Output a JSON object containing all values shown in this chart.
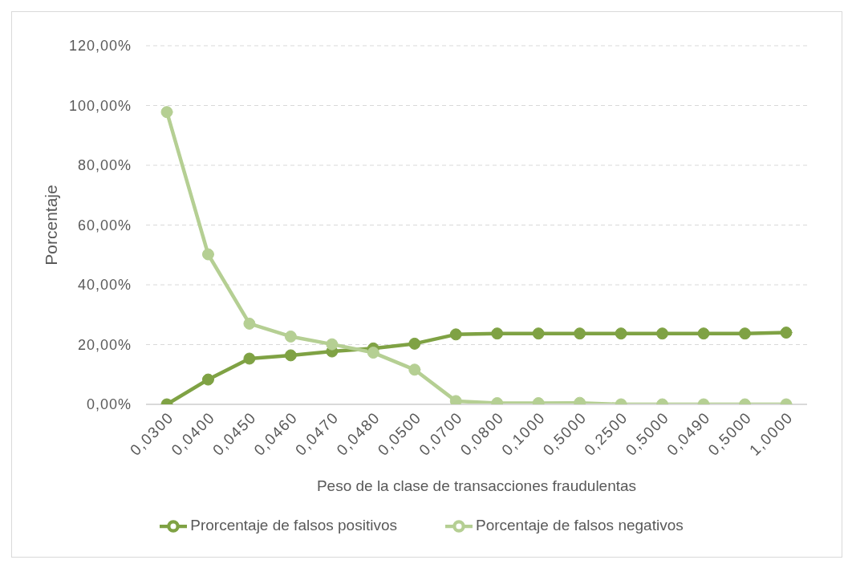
{
  "chart_data": {
    "type": "line",
    "xlabel": "Peso de la clase de transacciones fraudulentas",
    "ylabel": "Porcentaje",
    "categories": [
      "0,0300",
      "0,0400",
      "0,0450",
      "0,0460",
      "0,0470",
      "0,0480",
      "0,0500",
      "0,0700",
      "0,0800",
      "0,1000",
      "0,5000",
      "0,2500",
      "0,5000",
      "0,0490",
      "0,5000",
      "1,0000"
    ],
    "series": [
      {
        "name": "Prorcentaje de falsos positivos",
        "color": "#7fa244",
        "values": [
          0,
          8.3,
          15.3,
          16.4,
          17.7,
          18.7,
          20.3,
          23.4,
          23.7,
          23.7,
          23.7,
          23.7,
          23.7,
          23.7,
          23.7,
          24.0
        ]
      },
      {
        "name": "Porcentaje de falsos negativos",
        "color": "#b5cf93",
        "values": [
          97.8,
          50.2,
          27.0,
          22.7,
          20.1,
          17.3,
          11.6,
          1.1,
          0.4,
          0.4,
          0.5,
          0,
          0,
          0,
          0,
          0
        ]
      }
    ],
    "ylim": [
      0,
      120
    ],
    "yticks": [
      {
        "value": 0,
        "label": "0,00%"
      },
      {
        "value": 20,
        "label": "20,00%"
      },
      {
        "value": 40,
        "label": "40,00%"
      },
      {
        "value": 60,
        "label": "60,00%"
      },
      {
        "value": 80,
        "label": "80,00%"
      },
      {
        "value": 100,
        "label": "100,00%"
      },
      {
        "value": 120,
        "label": "120,00%"
      }
    ],
    "grid": "y",
    "legend": "bottom",
    "marker": "circle",
    "line_style": "solid"
  }
}
